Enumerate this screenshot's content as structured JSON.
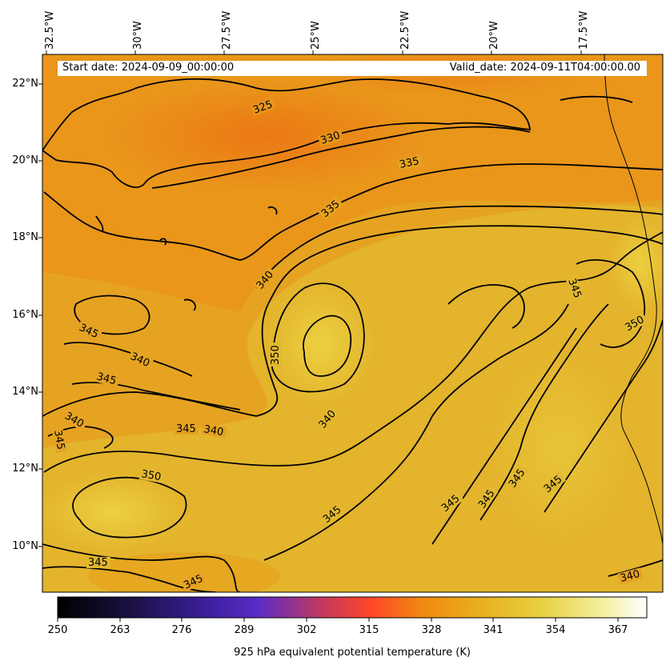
{
  "map": {
    "start_date": "Start date: 2024-09-09_00:00:00",
    "valid_date": "Valid_date: 2024-09-11T04:00:00.00",
    "lon_labels": [
      "32.5°W",
      "30°W",
      "27.5°W",
      "25°W",
      "22.5°W",
      "20°W",
      "17.5°W"
    ],
    "lat_labels": [
      "22°N",
      "20°N",
      "18°N",
      "16°N",
      "14°N",
      "12°N",
      "10°N"
    ],
    "contour_labels": [
      "325",
      "330",
      "335",
      "335",
      "340",
      "340",
      "340",
      "340",
      "340",
      "340",
      "345",
      "345",
      "345",
      "345",
      "345",
      "345",
      "345",
      "345",
      "345",
      "345",
      "345",
      "345",
      "350",
      "350",
      "350"
    ],
    "colors": {
      "low": "#000000",
      "mid": "#ff4a2e",
      "high": "#ffffff",
      "field_main": "#eaa21d",
      "field_warm": "#f07a14"
    }
  },
  "colorbar": {
    "ticks": [
      "250",
      "263",
      "276",
      "289",
      "302",
      "315",
      "328",
      "341",
      "354",
      "367"
    ],
    "title": "925 hPa equivalent potential temperature (K)",
    "range": [
      250,
      373
    ]
  }
}
